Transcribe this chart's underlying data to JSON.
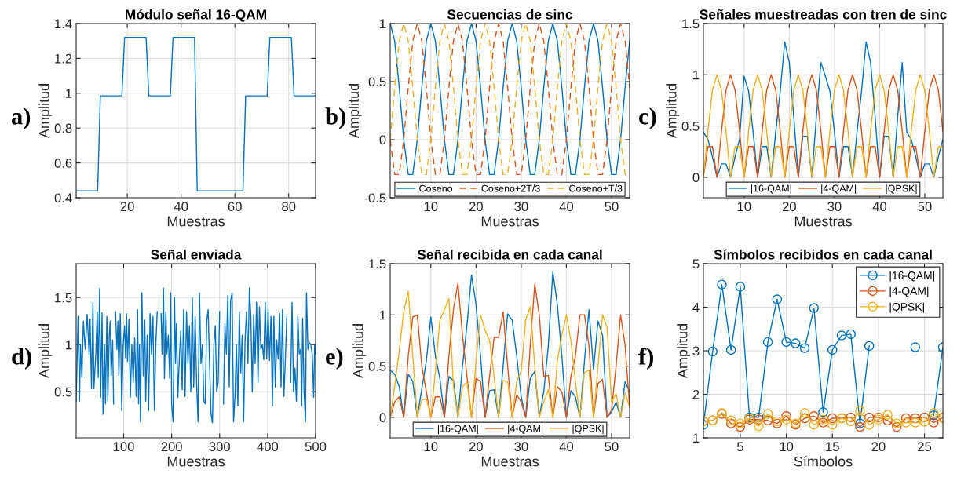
{
  "chart_data": [
    {
      "type": "line",
      "title": "Módulo señal 16-QAM",
      "xlabel": "Muestras",
      "ylabel": "Amplitud",
      "annotations": [
        "a)"
      ],
      "x": [
        1,
        9,
        10,
        18,
        19,
        27,
        28,
        36,
        37,
        45,
        46,
        63,
        64,
        72,
        73,
        81,
        82,
        90
      ],
      "series": [
        {
          "color": "#0072bd",
          "values": [
            0.44,
            0.44,
            0.985,
            0.985,
            1.32,
            1.32,
            0.985,
            0.985,
            1.32,
            1.32,
            0.44,
            0.44,
            0.985,
            0.985,
            1.32,
            1.32,
            0.985,
            0.985
          ]
        }
      ],
      "xlim": [
        1,
        90
      ],
      "xticks": [
        20,
        40,
        60,
        80
      ],
      "ylim": [
        0.4,
        1.4
      ],
      "yticks": [
        0.4,
        0.6,
        0.8,
        1,
        1.2,
        1.4
      ],
      "grid": true
    },
    {
      "type": "line",
      "title": "Secuencias de sinc",
      "xlabel": "Muestras",
      "ylabel": "Amplitud",
      "annotations": [
        "b)"
      ],
      "legend": "bottom",
      "x": [
        1,
        2,
        3,
        4,
        5,
        6,
        7,
        8,
        9,
        10,
        11,
        12,
        13,
        14,
        15,
        16,
        17,
        18,
        19,
        20,
        21,
        22,
        23,
        24,
        25,
        26,
        27,
        28,
        29,
        30,
        31,
        32,
        33,
        34,
        35,
        36,
        37,
        38,
        39,
        40,
        41,
        42,
        43,
        44,
        45,
        46,
        47,
        48,
        49,
        50,
        51,
        52,
        53,
        54
      ],
      "series": [
        {
          "name": "Coseno",
          "color": "#0072bd",
          "line_style": "solid",
          "values": [
            1,
            0.85,
            0.45,
            0,
            -0.3,
            -0.3,
            0,
            0.45,
            0.85,
            1,
            0.85,
            0.45,
            0,
            -0.3,
            -0.3,
            0,
            0.45,
            0.85,
            1,
            0.85,
            0.45,
            0,
            -0.3,
            -0.3,
            0,
            0.45,
            0.85,
            1,
            0.85,
            0.45,
            0,
            -0.3,
            -0.3,
            0,
            0.45,
            0.85,
            1,
            0.85,
            0.45,
            0,
            -0.3,
            -0.3,
            0,
            0.45,
            0.85,
            1,
            0.85,
            0.45,
            0,
            -0.3,
            -0.3,
            0,
            0.45,
            0.85
          ]
        },
        {
          "name": "Coseno+2T/3",
          "color": "#d95319",
          "line_style": "dashed",
          "values": [
            0,
            -0.3,
            -0.3,
            0,
            0.45,
            0.85,
            1,
            0.85,
            0.45,
            0,
            -0.3,
            -0.3,
            0,
            0.45,
            0.85,
            1,
            0.85,
            0.45,
            0,
            -0.3,
            -0.3,
            0,
            0.45,
            0.85,
            1,
            0.85,
            0.45,
            0,
            -0.3,
            -0.3,
            0,
            0.45,
            0.85,
            1,
            0.85,
            0.45,
            0,
            -0.3,
            -0.3,
            0,
            0.45,
            0.85,
            1,
            0.85,
            0.45,
            0,
            -0.3,
            -0.3,
            0,
            0.45,
            0.85,
            1,
            0.85,
            0.45
          ]
        },
        {
          "name": "Coseno+T/3",
          "color": "#edb120",
          "line_style": "dashed",
          "values": [
            0,
            0.45,
            0.85,
            1,
            0.85,
            0.45,
            0,
            -0.3,
            -0.3,
            0,
            0.45,
            0.85,
            1,
            0.85,
            0.45,
            0,
            -0.3,
            -0.3,
            0,
            0.45,
            0.85,
            1,
            0.85,
            0.45,
            0,
            -0.3,
            -0.3,
            0,
            0.45,
            0.85,
            1,
            0.85,
            0.45,
            0,
            -0.3,
            -0.3,
            0,
            0.45,
            0.85,
            1,
            0.85,
            0.45,
            0,
            -0.3,
            -0.3,
            0,
            0.45,
            0.85,
            1,
            0.85,
            0.45,
            0,
            -0.3,
            -0.3
          ]
        }
      ],
      "xlim": [
        1,
        54
      ],
      "xticks": [
        10,
        20,
        30,
        40,
        50
      ],
      "ylim": [
        -0.5,
        1
      ],
      "yticks": [
        -0.5,
        0,
        0.5,
        1
      ],
      "grid": true
    },
    {
      "type": "line",
      "title": "Señales muestreadas con tren de sinc",
      "xlabel": "Muestras",
      "ylabel": "Amplitud",
      "annotations": [
        "c)"
      ],
      "legend": "bottom",
      "x": [
        1,
        2,
        3,
        4,
        5,
        6,
        7,
        8,
        9,
        10,
        11,
        12,
        13,
        14,
        15,
        16,
        17,
        18,
        19,
        20,
        21,
        22,
        23,
        24,
        25,
        26,
        27,
        28,
        29,
        30,
        31,
        32,
        33,
        34,
        35,
        36,
        37,
        38,
        39,
        40,
        41,
        42,
        43,
        44,
        45,
        46,
        47,
        48,
        49,
        50,
        51,
        52,
        53,
        54
      ],
      "series": [
        {
          "name": "|16-QAM|",
          "color": "#0072bd",
          "values": [
            0.44,
            0.37,
            0.2,
            0,
            0.13,
            0.13,
            0,
            0.2,
            0.37,
            0.985,
            0.84,
            0.44,
            0,
            0.3,
            0.3,
            0,
            0.44,
            0.84,
            1.32,
            1.12,
            0.59,
            0,
            0.4,
            0.4,
            0,
            0.59,
            1.12,
            0.985,
            0.84,
            0.44,
            0,
            0.3,
            0.3,
            0,
            0.44,
            0.84,
            1.32,
            1.12,
            0.59,
            0,
            0.4,
            0.4,
            0,
            0.59,
            1.12,
            0.44,
            0.37,
            0.2,
            0,
            0.13,
            0.13,
            0,
            0.2,
            0.37
          ]
        },
        {
          "name": "|4-QAM|",
          "color": "#d95319",
          "values": [
            0,
            0.3,
            0.3,
            0,
            0.45,
            0.85,
            1,
            0.85,
            0.45,
            0,
            0.3,
            0.3,
            0,
            0.45,
            0.85,
            1,
            0.85,
            0.45,
            0,
            0.3,
            0.3,
            0,
            0.45,
            0.85,
            1,
            0.85,
            0.45,
            0,
            0.3,
            0.3,
            0,
            0.45,
            0.85,
            1,
            0.85,
            0.45,
            0,
            0.3,
            0.3,
            0,
            0.45,
            0.85,
            1,
            0.85,
            0.45,
            0,
            0.3,
            0.3,
            0,
            0.45,
            0.85,
            1,
            0.85,
            0.45
          ]
        },
        {
          "name": "|QPSK|",
          "color": "#edb120",
          "values": [
            0,
            0.45,
            0.85,
            1,
            0.85,
            0.45,
            0,
            0.3,
            0.3,
            0,
            0.45,
            0.85,
            1,
            0.85,
            0.45,
            0,
            0.3,
            0.3,
            0,
            0.45,
            0.85,
            1,
            0.85,
            0.45,
            0,
            0.3,
            0.3,
            0,
            0.45,
            0.85,
            1,
            0.85,
            0.45,
            0,
            0.3,
            0.3,
            0,
            0.45,
            0.85,
            1,
            0.85,
            0.45,
            0,
            0.3,
            0.3,
            0,
            0.45,
            0.85,
            1,
            0.85,
            0.45,
            0,
            0.3,
            0.3
          ]
        }
      ],
      "xlim": [
        1,
        54
      ],
      "xticks": [
        10,
        20,
        30,
        40,
        50
      ],
      "ylim": [
        -0.2,
        1.5
      ],
      "yticks": [
        0,
        0.5,
        1,
        1.5
      ],
      "grid": true
    },
    {
      "type": "line",
      "title": "Señal enviada",
      "xlabel": "Muestras",
      "ylabel": "Amplitud",
      "annotations": [
        "d)"
      ],
      "x": [
        1,
        5,
        8,
        10,
        13,
        16,
        20,
        24,
        28,
        30,
        33,
        36,
        38,
        42,
        45,
        47,
        50,
        52,
        55,
        57,
        60,
        62,
        65,
        67,
        70,
        72,
        74,
        77,
        79,
        80,
        81,
        83,
        86,
        88,
        90,
        93,
        96,
        99,
        102,
        104,
        106,
        108,
        111,
        114,
        117,
        120,
        123,
        126,
        129,
        131,
        133,
        135,
        138,
        141,
        144,
        146,
        149,
        152,
        155,
        158,
        161,
        164,
        167,
        170,
        173,
        176,
        178,
        180,
        183,
        185,
        188,
        190,
        193,
        196,
        198,
        200,
        203,
        206,
        208,
        210,
        213,
        216,
        219,
        222,
        225,
        228,
        231,
        234,
        237,
        240,
        243,
        246,
        249,
        252,
        255,
        258,
        261,
        264,
        267,
        270,
        273,
        276,
        279,
        282,
        285,
        288,
        291,
        294,
        297,
        300,
        303,
        305,
        308,
        311,
        314,
        317,
        320,
        323,
        326,
        329,
        332,
        335,
        338,
        341,
        344,
        347,
        350,
        353,
        356,
        359,
        362,
        365,
        368,
        371,
        374,
        377,
        380,
        383,
        386,
        389,
        392,
        395,
        398,
        401,
        404,
        407,
        410,
        413,
        416,
        419,
        422,
        425,
        428,
        431,
        434,
        437,
        440,
        443,
        445,
        448,
        451,
        454,
        457,
        460,
        463,
        466,
        469,
        471,
        473,
        476,
        479,
        481,
        484,
        487,
        490,
        493,
        496,
        498,
        500
      ],
      "series": [
        {
          "color": "#0072bd",
          "values": [
            0.4,
            1.3,
            0.4,
            1.0,
            0.65,
            1.25,
            0.95,
            1.32,
            0.9,
            1.27,
            0.53,
            1.45,
            0.53,
            0.9,
            1.35,
            0.65,
            1.6,
            0.44,
            1.34,
            0.26,
            1.0,
            0.37,
            1.3,
            0.4,
            1.1,
            1.25,
            0.67,
            1.05,
            0.37,
            null,
            null,
            1.35,
            0.95,
            1.25,
            0.67,
            1.33,
            0.3,
            1.0,
            1.2,
            0.86,
            1.33,
            0.82,
            1.27,
            0.44,
            1.0,
            0.6,
            1.07,
            0.45,
            1.37,
            0.37,
            1.0,
            0.18,
            1.55,
            0.67,
            1.26,
            0.4,
            1.1,
            0.3,
            1.33,
            0.9,
            1.3,
            0.3,
            1.0,
            1.35,
            null,
            null,
            1.33,
            0.9,
            1.6,
            0.64,
            1.35,
            0.9,
            1.1,
            0.64,
            1.55,
            0.37,
            0.18,
            1.5,
            0.8,
            1.22,
            0.44,
            0.85,
            1.15,
            0.52,
            1.37,
            0.45,
            1.35,
            0.8,
            1.2,
            0.5,
            1.5,
            0.55,
            1.3,
            0.6,
            0.18,
            1.55,
            0.8,
            1.0,
            0.4,
            0.37,
            1.25,
            1.37,
            0.8,
            0.27,
            0.17,
            1.0,
            1.2,
            0.5,
            0.6,
            1.35,
            null,
            null,
            0.37,
            1.22,
            0.9,
            1.52,
            0.55,
            1.47,
            1.55,
            0.18,
            0.45,
            1.0,
            0.35,
            1.35,
            0.7,
            1.1,
            0.18,
            1.05,
            1.35,
            0.8,
            1.6,
            1.3,
            0.5,
            1.32,
            0.8,
            1.45,
            0.6,
            1.4,
            0.95,
            1.0,
            0.84,
            1.45,
            0.85,
            1.37,
            0.83,
            1.3,
            0.35,
            1.3,
            0.55,
            1.05,
            0.85,
            1.33,
            0.55,
            1.37,
            0.45,
            0.85,
            1.3,
            null,
            null,
            0.6,
            1.45,
            0.5,
            0.75,
            0.4,
            1.3,
            0.9,
            0.95,
            0.35,
            1.28,
            0.5,
            0.18,
            1.55,
            0.95,
            1.02,
            1.0,
            0.9,
            0.44,
            1.0,
            0.9
          ]
        }
      ],
      "xlim": [
        1,
        500
      ],
      "xticks": [
        100,
        200,
        300,
        400,
        500
      ],
      "ylim": [
        0.01,
        1.86
      ],
      "yticks": [
        0.5,
        1,
        1.5
      ],
      "grid": true
    },
    {
      "type": "line",
      "title": "Señal recibida en cada canal",
      "xlabel": "Muestras",
      "ylabel": "Amplitud",
      "annotations": [
        "e)"
      ],
      "legend": "bottom",
      "x": [
        1,
        2,
        3,
        4,
        5,
        6,
        7,
        8,
        9,
        10,
        11,
        12,
        13,
        14,
        15,
        16,
        17,
        18,
        19,
        20,
        21,
        22,
        23,
        24,
        25,
        26,
        27,
        28,
        29,
        30,
        31,
        32,
        33,
        34,
        35,
        36,
        37,
        38,
        39,
        40,
        41,
        42,
        43,
        44,
        45,
        46,
        47,
        48,
        49,
        50,
        51,
        52,
        53,
        54
      ],
      "series": [
        {
          "name": "|16-QAM|",
          "color": "#0072bd",
          "values": [
            0.46,
            0.42,
            0.3,
            0,
            0.42,
            0.35,
            0,
            0.28,
            0.55,
            0.98,
            0.6,
            0.38,
            0,
            0.4,
            0.36,
            0,
            0.5,
            0.9,
            1.39,
            1.1,
            0.6,
            0,
            0.26,
            0.27,
            0,
            0.5,
            1.01,
            0.95,
            0.6,
            0.2,
            0,
            0.38,
            0.45,
            0,
            0.25,
            0.7,
            1.42,
            1.1,
            0.6,
            0,
            0.26,
            0.2,
            0,
            0.55,
            1.05,
            0.47,
            0.94,
            0.8,
            0,
            0.05,
            0.15,
            0,
            0.35,
            0.25
          ]
        },
        {
          "name": "|4-QAM|",
          "color": "#d95319",
          "values": [
            0,
            0.15,
            0.2,
            0,
            0.6,
            0.98,
            1.0,
            0.5,
            0.25,
            0,
            0.2,
            0.2,
            0,
            0.6,
            1.05,
            1.31,
            0.8,
            0.4,
            0,
            0.38,
            0.35,
            0,
            0.4,
            0.78,
            0.78,
            1.03,
            0.5,
            0,
            0.22,
            0.15,
            0,
            0.7,
            1.3,
            1.0,
            0.4,
            0.41,
            0,
            0.3,
            0.25,
            0,
            0.4,
            0.6,
            1.0,
            1.0,
            0.7,
            0,
            0.33,
            0.37,
            0,
            0.07,
            0.5,
            1.0,
            0.7,
            0.1
          ]
        },
        {
          "name": "|QPSK|",
          "color": "#edb120",
          "values": [
            0,
            0.3,
            0.65,
            1.03,
            1.23,
            0.6,
            0,
            0.17,
            0.18,
            0,
            0.45,
            0.95,
            1.05,
            1.16,
            0.3,
            0,
            0.3,
            0.34,
            0,
            0.55,
            1.0,
            0.85,
            0.75,
            0.4,
            0,
            0.36,
            0.35,
            0,
            0.35,
            0.45,
            0.95,
            1.08,
            0.5,
            0,
            0.15,
            0.27,
            0,
            0.55,
            0.8,
            1.0,
            0.75,
            0.35,
            0,
            0.44,
            0.46,
            0,
            0.5,
            1.0,
            0.88,
            0.15,
            0.23,
            0,
            0.24,
            0.1
          ]
        }
      ],
      "xlim": [
        1,
        54
      ],
      "xticks": [
        10,
        20,
        30,
        40,
        50
      ],
      "ylim": [
        -0.2,
        1.5
      ],
      "yticks": [
        0,
        0.5,
        1,
        1.5
      ],
      "grid": true
    },
    {
      "type": "line",
      "title": "Símbolos recibidos en cada canal",
      "xlabel": "Símbolos",
      "ylabel": "Amplitud",
      "annotations": [
        "f)"
      ],
      "legend": "top right",
      "marker": "circle",
      "x": [
        1,
        2,
        3,
        4,
        5,
        6,
        7,
        8,
        9,
        10,
        11,
        12,
        13,
        14,
        15,
        16,
        17,
        18,
        19,
        20,
        21,
        22,
        23,
        24,
        25,
        26,
        27
      ],
      "series": [
        {
          "name": "|16-QAM|",
          "color": "#0072bd",
          "values": [
            1.3,
            2.98,
            4.52,
            3.02,
            4.47,
            1.47,
            1.47,
            3.2,
            4.18,
            3.2,
            3.17,
            3.06,
            3.98,
            1.59,
            3.02,
            3.35,
            3.38,
            1.33,
            3.11,
            null,
            null,
            null,
            null,
            3.08,
            null,
            1.52,
            3.08
          ]
        },
        {
          "name": "|4-QAM|",
          "color": "#d95319",
          "values": [
            1.38,
            1.4,
            1.55,
            1.33,
            1.25,
            1.42,
            1.42,
            1.4,
            1.33,
            1.5,
            1.3,
            1.45,
            1.5,
            1.35,
            1.45,
            1.45,
            1.47,
            1.25,
            1.47,
            1.47,
            1.4,
            1.25,
            1.45,
            1.45,
            1.47,
            1.35,
            1.47
          ]
        },
        {
          "name": "|QPSK|",
          "color": "#edb120",
          "values": [
            1.38,
            1.4,
            1.57,
            1.4,
            1.33,
            1.45,
            1.27,
            1.55,
            1.38,
            1.42,
            1.33,
            1.57,
            1.3,
            1.42,
            1.3,
            1.45,
            1.38,
            1.62,
            1.3,
            1.42,
            1.53,
            1.33,
            1.35,
            1.35,
            1.37,
            1.57,
            1.45
          ]
        }
      ],
      "xlim": [
        1,
        27
      ],
      "xticks": [
        5,
        10,
        15,
        20,
        25
      ],
      "ylim": [
        1,
        5
      ],
      "yticks": [
        1,
        2,
        3,
        4,
        5
      ],
      "grid": true
    }
  ]
}
